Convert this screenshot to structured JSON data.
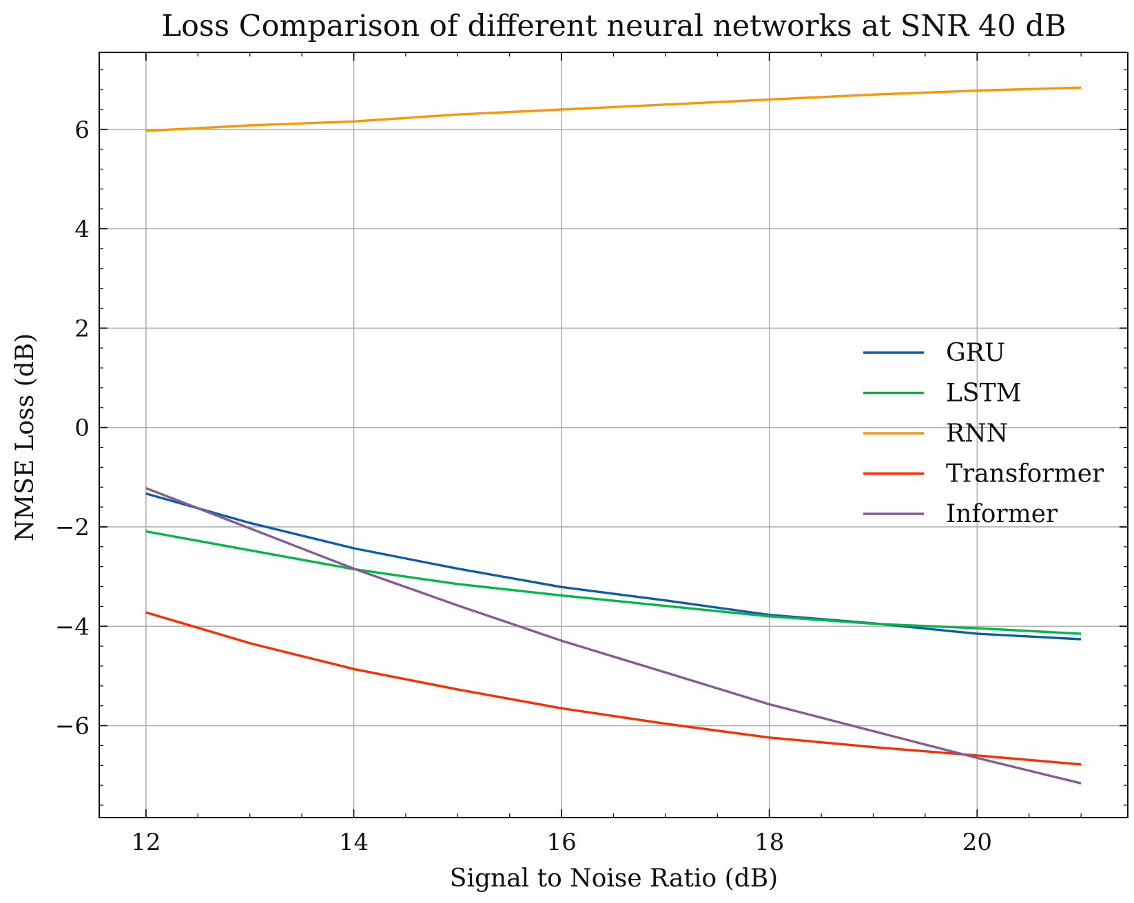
{
  "chart_data": {
    "type": "line",
    "title": "Loss Comparison of different neural networks at SNR 40 dB",
    "xlabel": "Signal to Noise Ratio (dB)",
    "ylabel": "NMSE Loss (dB)",
    "xlim": [
      11.55,
      21.45
    ],
    "ylim": [
      -7.85,
      7.55
    ],
    "xticks": [
      12,
      14,
      16,
      18,
      20
    ],
    "xtick_labels": [
      "12",
      "14",
      "16",
      "18",
      "20"
    ],
    "yticks": [
      -6,
      -4,
      -2,
      0,
      2,
      4,
      6
    ],
    "ytick_labels": [
      "−6",
      "−4",
      "−2",
      "0",
      "2",
      "4",
      "6"
    ],
    "grid": true,
    "legend_position": "right",
    "x": [
      12,
      13,
      14,
      15,
      16,
      17,
      18,
      19,
      20,
      21
    ],
    "series": [
      {
        "name": "GRU",
        "color": "#0C5DA5",
        "values": [
          -1.33,
          -1.92,
          -2.43,
          -2.84,
          -3.21,
          -3.48,
          -3.77,
          -3.94,
          -4.15,
          -4.26
        ]
      },
      {
        "name": "LSTM",
        "color": "#00B945",
        "values": [
          -2.09,
          -2.47,
          -2.85,
          -3.15,
          -3.38,
          -3.59,
          -3.8,
          -3.95,
          -4.04,
          -4.15
        ]
      },
      {
        "name": "RNN",
        "color": "#FF9500",
        "values": [
          5.97,
          6.08,
          6.16,
          6.3,
          6.4,
          6.5,
          6.6,
          6.7,
          6.78,
          6.84
        ]
      },
      {
        "name": "Transformer",
        "color": "#FF2C00",
        "values": [
          -3.72,
          -4.34,
          -4.86,
          -5.27,
          -5.65,
          -5.96,
          -6.24,
          -6.43,
          -6.6,
          -6.78
        ]
      },
      {
        "name": "Informer",
        "color": "#845B97",
        "values": [
          -1.22,
          -2.03,
          -2.84,
          -3.58,
          -4.29,
          -4.93,
          -5.57,
          -6.11,
          -6.65,
          -7.16
        ]
      }
    ]
  }
}
